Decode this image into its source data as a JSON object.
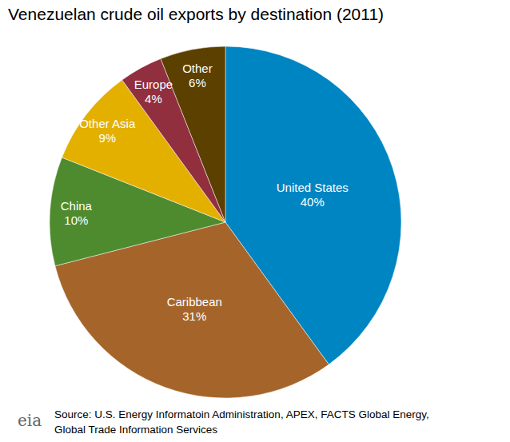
{
  "chart_data": {
    "type": "pie",
    "title": "Venezuelan crude oil exports by destination (2011)",
    "categories": [
      "United States",
      "Caribbean",
      "China",
      "Other Asia",
      "Europe",
      "Other"
    ],
    "values": [
      40,
      31,
      10,
      9,
      4,
      6
    ],
    "value_labels": [
      "40%",
      "31%",
      "10%",
      "9%",
      "4%",
      "6%"
    ],
    "colors": [
      "#0085c3",
      "#a5652a",
      "#4e8b2e",
      "#e3b000",
      "#912f3e",
      "#5c4000"
    ],
    "data_labels": true,
    "source": [
      "Source: U.S. Energy Informatoin Administration, APEX, FACTS Global Energy,",
      "Global Trade Information Services"
    ],
    "logo": "eia"
  }
}
